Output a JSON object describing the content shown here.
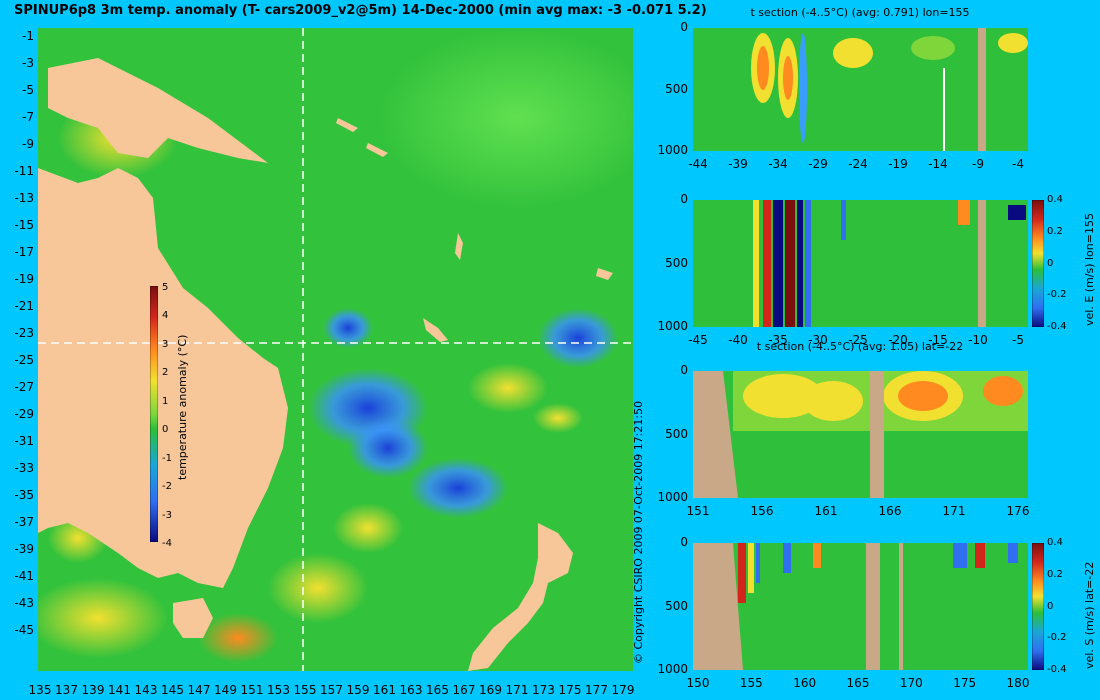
{
  "title": "SPINUP6p8 3m temp. anomaly (T- cars2009_v2@5m) 14-Dec-2000 (min avg max: -3 -0.071 5.2)",
  "copyright": "© Copyright CSIRO 2009   07-Oct-2009 17:21:50",
  "colors": {
    "background": "#00c8ff",
    "land": "#f7c79a",
    "section_land": "#c8a886"
  },
  "map": {
    "lat_labels": [
      "-1",
      "-3",
      "-5",
      "-7",
      "-9",
      "-11",
      "-13",
      "-15",
      "-17",
      "-19",
      "-21",
      "-23",
      "-25",
      "-27",
      "-29",
      "-31",
      "-33",
      "-35",
      "-37",
      "-39",
      "-41",
      "-43",
      "-45"
    ],
    "lon_labels": [
      "135",
      "137",
      "139",
      "141",
      "143",
      "145",
      "147",
      "149",
      "151",
      "153",
      "155",
      "157",
      "159",
      "161",
      "163",
      "165",
      "167",
      "169",
      "171",
      "173",
      "175",
      "177",
      "179"
    ],
    "lat_range": [
      -45,
      0
    ],
    "lon_range": [
      135,
      180
    ],
    "section_lon": 155,
    "section_lat": -22,
    "colorbar": {
      "label": "temperature anomaly (°C)",
      "ticks": [
        "5",
        "4",
        "3",
        "2",
        "1",
        "0",
        "-1",
        "-2",
        "-3",
        "-4"
      ],
      "range": [
        -4,
        5
      ]
    }
  },
  "panels": [
    {
      "id": "t-section-lon",
      "title": "t section (-4..5°C) (avg: 0.791) lon=155",
      "yticks": [
        "0",
        "500",
        "1000"
      ],
      "xticks": [
        "-44",
        "-39",
        "-34",
        "-29",
        "-24",
        "-19",
        "-14",
        "-9",
        "-4"
      ],
      "colorbar_label": "",
      "colorbar_ticks": []
    },
    {
      "id": "vel-e-section",
      "title": "",
      "yticks": [
        "0",
        "500",
        "1000"
      ],
      "xticks": [
        "-45",
        "-40",
        "-35",
        "-30",
        "-25",
        "-20",
        "-15",
        "-10",
        "-5"
      ],
      "colorbar_label": "vel. E (m/s) lon=155",
      "colorbar_ticks": [
        "0.4",
        "0.2",
        "0",
        "-0.2",
        "-0.4"
      ]
    },
    {
      "id": "t-section-lat",
      "title": "t section (-4..5°C) (avg: 1.05) lat=-22",
      "yticks": [
        "0",
        "500",
        "1000"
      ],
      "xticks": [
        "151",
        "156",
        "161",
        "166",
        "171",
        "176"
      ],
      "colorbar_label": "",
      "colorbar_ticks": []
    },
    {
      "id": "vel-s-section",
      "title": "",
      "yticks": [
        "0",
        "500",
        "1000"
      ],
      "xticks": [
        "150",
        "155",
        "160",
        "165",
        "170",
        "175",
        "180"
      ],
      "colorbar_label": "vel. S (m/s) lat=-22",
      "colorbar_ticks": [
        "0.4",
        "0.2",
        "0",
        "-0.2",
        "-0.4"
      ]
    }
  ]
}
